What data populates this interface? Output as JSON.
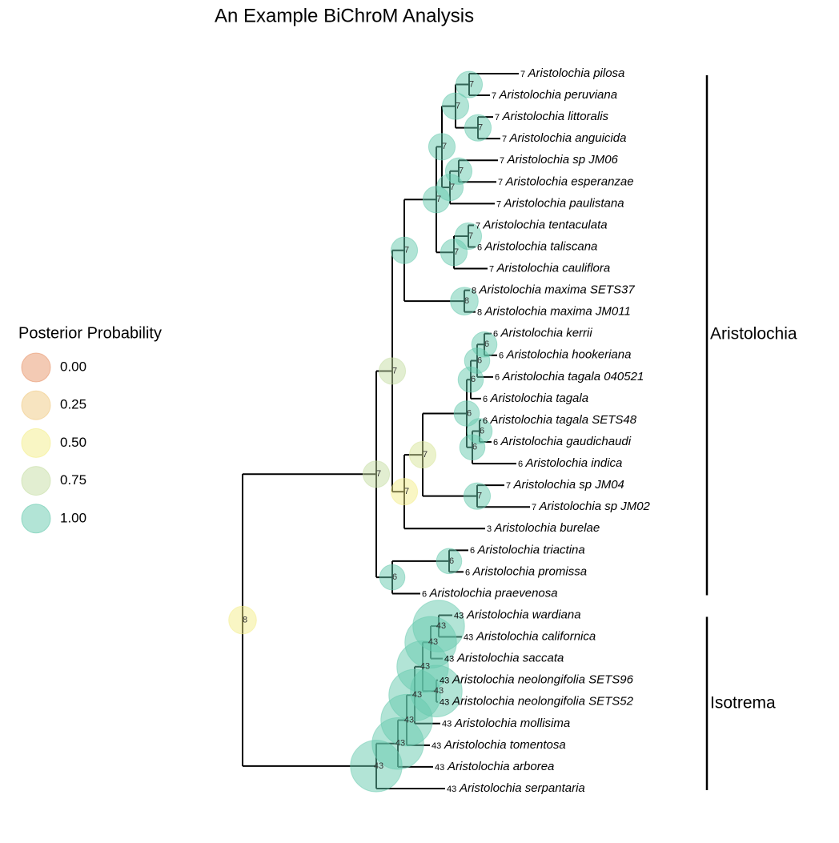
{
  "title": "An Example BiChroM Analysis",
  "legend": {
    "title": "Posterior Probability",
    "items": [
      {
        "label": "0.00",
        "color": "#e8956a"
      },
      {
        "label": "0.25",
        "color": "#f0c982"
      },
      {
        "label": "0.50",
        "color": "#f3ee8a"
      },
      {
        "label": "0.75",
        "color": "#c6dda4"
      },
      {
        "label": "1.00",
        "color": "#66c9ad"
      }
    ]
  },
  "tips": [
    {
      "label": "Aristolochia pilosa",
      "count": 7
    },
    {
      "label": "Aristolochia peruviana",
      "count": 7
    },
    {
      "label": "Aristolochia littoralis",
      "count": 7
    },
    {
      "label": "Aristolochia anguicida",
      "count": 7
    },
    {
      "label": "Aristolochia sp JM06",
      "count": 7
    },
    {
      "label": "Aristolochia esperanzae",
      "count": 7
    },
    {
      "label": "Aristolochia paulistana",
      "count": 7
    },
    {
      "label": "Aristolochia tentaculata",
      "count": 7
    },
    {
      "label": "Aristolochia taliscana",
      "count": 6
    },
    {
      "label": "Aristolochia cauliflora",
      "count": 7
    },
    {
      "label": "Aristolochia maxima SETS37",
      "count": 8
    },
    {
      "label": "Aristolochia maxima JM011",
      "count": 8
    },
    {
      "label": "Aristolochia kerrii",
      "count": 6
    },
    {
      "label": "Aristolochia hookeriana",
      "count": 6
    },
    {
      "label": "Aristolochia tagala 040521",
      "count": 6
    },
    {
      "label": "Aristolochia tagala",
      "count": 6
    },
    {
      "label": "Aristolochia tagala SETS48",
      "count": 6
    },
    {
      "label": "Aristolochia gaudichaudi",
      "count": 6
    },
    {
      "label": "Aristolochia indica",
      "count": 6
    },
    {
      "label": "Aristolochia sp JM04",
      "count": 7
    },
    {
      "label": "Aristolochia sp JM02",
      "count": 7
    },
    {
      "label": "Aristolochia burelae",
      "count": 3
    },
    {
      "label": "Aristolochia triactina",
      "count": 6
    },
    {
      "label": "Aristolochia promissa",
      "count": 6
    },
    {
      "label": "Aristolochia praevenosa",
      "count": 6
    },
    {
      "label": "Aristolochia wardiana",
      "count": 43
    },
    {
      "label": "Aristolochia californica",
      "count": 43
    },
    {
      "label": "Aristolochia saccata",
      "count": 43
    },
    {
      "label": "Aristolochia neolongifolia SETS96",
      "count": 43
    },
    {
      "label": "Aristolochia neolongifolia SETS52",
      "count": 43
    },
    {
      "label": "Aristolochia mollisima",
      "count": 43
    },
    {
      "label": "Aristolochia tomentosa",
      "count": 43
    },
    {
      "label": "Aristolochia arborea",
      "count": 43
    },
    {
      "label": "Aristolochia serpantaria",
      "count": 43
    }
  ],
  "nodes": [
    {
      "count": 8,
      "color": "#f3ee8a"
    },
    {
      "count": 7,
      "color": "#c6dda4"
    },
    {
      "count": 7,
      "color": "#c6dda4"
    },
    {
      "count": 7,
      "color": "#66c9ad"
    },
    {
      "count": 7,
      "color": "#66c9ad"
    },
    {
      "count": 7,
      "color": "#66c9ad"
    },
    {
      "count": 7,
      "color": "#66c9ad"
    },
    {
      "count": 7,
      "color": "#66c9ad"
    },
    {
      "count": 7,
      "color": "#66c9ad"
    },
    {
      "count": 7,
      "color": "#66c9ad"
    },
    {
      "count": 7,
      "color": "#66c9ad"
    },
    {
      "count": 7,
      "color": "#66c9ad"
    },
    {
      "count": 7,
      "color": "#66c9ad"
    },
    {
      "count": 8,
      "color": "#66c9ad"
    },
    {
      "count": 7,
      "color": "#f3ee8a"
    },
    {
      "count": 7,
      "color": "#d8e69a"
    },
    {
      "count": 6,
      "color": "#66c9ad"
    },
    {
      "count": 6,
      "color": "#66c9ad"
    },
    {
      "count": 6,
      "color": "#66c9ad"
    },
    {
      "count": 6,
      "color": "#66c9ad"
    },
    {
      "count": 6,
      "color": "#66c9ad"
    },
    {
      "count": 6,
      "color": "#66c9ad"
    },
    {
      "count": 7,
      "color": "#66c9ad"
    },
    {
      "count": 6,
      "color": "#66c9ad"
    },
    {
      "count": 6,
      "color": "#66c9ad"
    },
    {
      "count": 43,
      "color": "#66c9ad"
    },
    {
      "count": 43,
      "color": "#66c9ad"
    },
    {
      "count": 43,
      "color": "#66c9ad"
    },
    {
      "count": 43,
      "color": "#66c9ad"
    },
    {
      "count": 43,
      "color": "#66c9ad"
    },
    {
      "count": 43,
      "color": "#66c9ad"
    },
    {
      "count": 43,
      "color": "#66c9ad"
    },
    {
      "count": 43,
      "color": "#66c9ad"
    }
  ],
  "clades": [
    {
      "label": "Aristolochia"
    },
    {
      "label": "Isotrema"
    }
  ]
}
